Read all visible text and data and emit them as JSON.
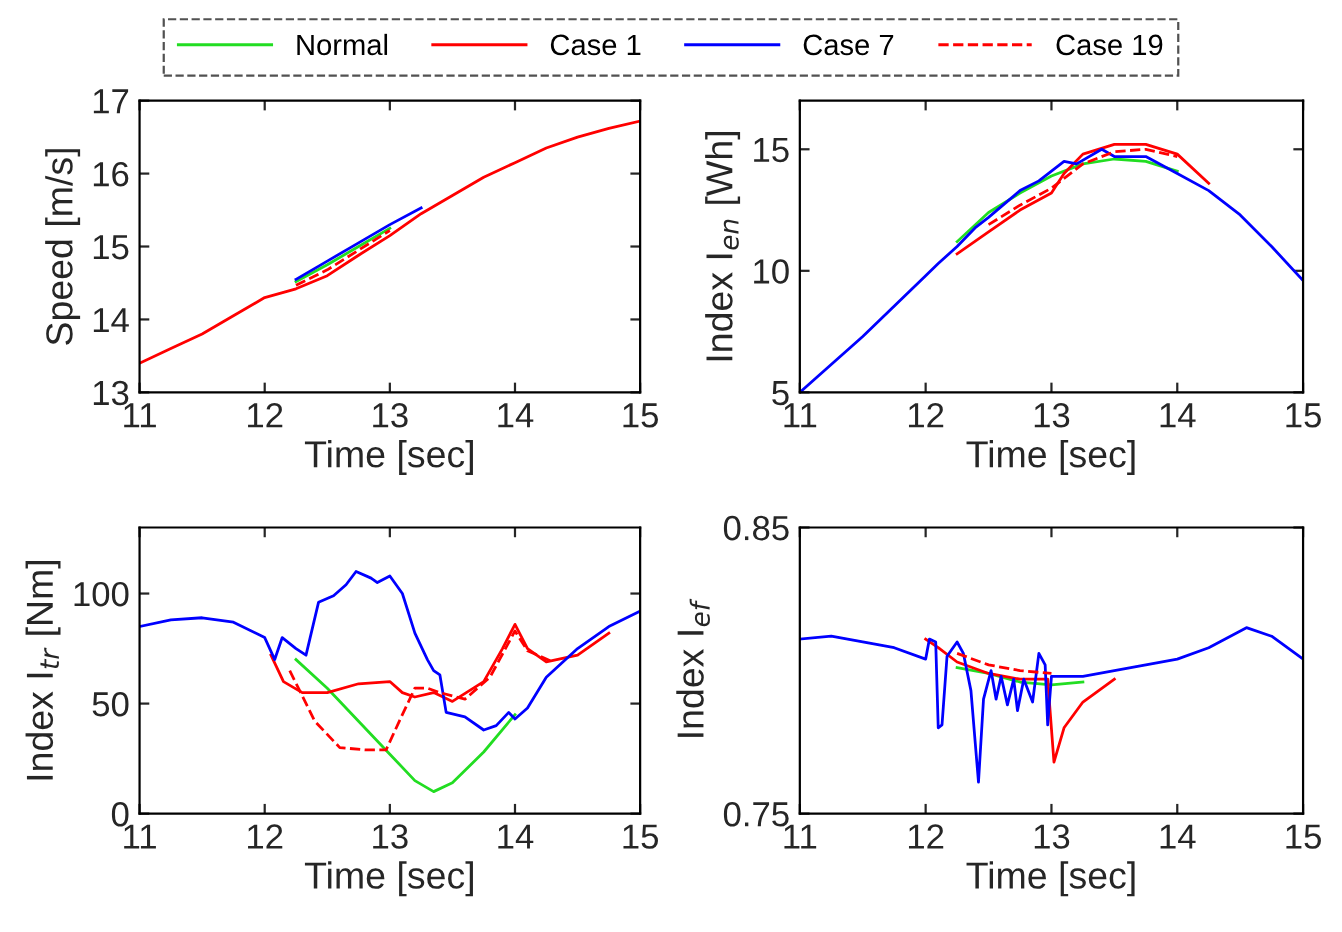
{
  "chart_data": [
    {
      "type": "line",
      "xlabel": "Time [sec]",
      "ylabel": "Speed [m/s]",
      "xlim": [
        11,
        15
      ],
      "xticks": [
        11,
        12,
        13,
        14,
        15
      ],
      "ylim": [
        13,
        17
      ],
      "yticks": [
        13,
        14,
        15,
        16,
        17
      ],
      "grid": false,
      "legend": "top",
      "marker": "none",
      "series": [
        {
          "name": "Normal",
          "color": "#22dd22",
          "line_style": "solid",
          "x": [
            12.25,
            12.5,
            12.75,
            13
          ],
          "values": [
            14.52,
            14.75,
            15.0,
            15.25
          ]
        },
        {
          "name": "Case 1",
          "color": "#ff0000",
          "line_style": "solid",
          "x": [
            11,
            11.25,
            11.5,
            11.75,
            12,
            12.25,
            12.5,
            12.75,
            13,
            13.25,
            13.5,
            13.75,
            14,
            14.25,
            14.5,
            14.75,
            15
          ],
          "values": [
            13.4,
            13.6,
            13.8,
            14.05,
            14.3,
            14.42,
            14.6,
            14.88,
            15.15,
            15.45,
            15.7,
            15.95,
            16.15,
            16.35,
            16.5,
            16.62,
            16.72
          ]
        },
        {
          "name": "Case 7",
          "color": "#0000ff",
          "line_style": "solid",
          "x": [
            12.25,
            12.5,
            12.75,
            13,
            13.25
          ],
          "values": [
            14.55,
            14.8,
            15.05,
            15.3,
            15.53
          ]
        },
        {
          "name": "Case 19",
          "color": "#ff0000",
          "line_style": "dashed",
          "x": [
            12.25,
            12.5,
            12.75,
            13
          ],
          "values": [
            14.47,
            14.68,
            14.95,
            15.22
          ]
        }
      ]
    },
    {
      "type": "line",
      "xlabel": "Time [sec]",
      "ylabel": "Index I$_{en}$ [Wh]",
      "xlim": [
        11,
        15
      ],
      "xticks": [
        11,
        12,
        13,
        14,
        15
      ],
      "ylim": [
        5,
        17
      ],
      "yticks": [
        5,
        10,
        15
      ],
      "grid": false,
      "marker": "none",
      "series": [
        {
          "color": "#22dd22",
          "line_style": "solid",
          "x": [
            12.25,
            12.5,
            12.75,
            13,
            13.25,
            13.5,
            13.75,
            14
          ],
          "values": [
            11.2,
            12.4,
            13.2,
            13.9,
            14.4,
            14.6,
            14.5,
            14.1
          ]
        },
        {
          "color": "#ff0000",
          "line_style": "solid",
          "x": [
            12.25,
            12.5,
            12.75,
            13,
            13.1,
            13.25,
            13.5,
            13.75,
            14,
            14.25
          ],
          "values": [
            10.7,
            11.6,
            12.5,
            13.2,
            14.0,
            14.8,
            15.2,
            15.2,
            14.8,
            13.6
          ]
        },
        {
          "color": "#0000ff",
          "line_style": "solid",
          "x": [
            11,
            11.5,
            12,
            12.1,
            12.25,
            12.4,
            12.5,
            12.75,
            12.9,
            13.1,
            13.2,
            13.4,
            13.5,
            13.75,
            14,
            14.25,
            14.5,
            14.75,
            15
          ],
          "values": [
            5.0,
            7.3,
            9.8,
            10.3,
            11.0,
            11.8,
            12.2,
            13.3,
            13.7,
            14.5,
            14.4,
            15.0,
            14.7,
            14.7,
            14.0,
            13.3,
            12.3,
            11.0,
            9.6
          ]
        },
        {
          "color": "#ff0000",
          "line_style": "dashed",
          "x": [
            12.5,
            12.75,
            13,
            13.25,
            13.5,
            13.75,
            14
          ],
          "values": [
            11.9,
            12.7,
            13.4,
            14.4,
            14.9,
            15.0,
            14.7
          ]
        }
      ]
    },
    {
      "type": "line",
      "xlabel": "Time [sec]",
      "ylabel": "Index I$_{tr}$ [Nm]",
      "xlim": [
        11,
        15
      ],
      "xticks": [
        11,
        12,
        13,
        14,
        15
      ],
      "ylim": [
        0,
        130
      ],
      "yticks": [
        0,
        50,
        100
      ],
      "grid": false,
      "marker": "none",
      "series": [
        {
          "color": "#22dd22",
          "line_style": "solid",
          "x": [
            12.25,
            12.5,
            12.75,
            13,
            13.2,
            13.35,
            13.5,
            13.75,
            14
          ],
          "values": [
            70,
            57,
            42,
            27,
            15,
            10,
            14,
            28,
            45
          ]
        },
        {
          "color": "#ff0000",
          "line_style": "solid",
          "x": [
            12.05,
            12.15,
            12.3,
            12.5,
            12.75,
            13,
            13.1,
            13.2,
            13.35,
            13.5,
            13.75,
            13.9,
            14,
            14.1,
            14.25,
            14.5,
            14.75
          ],
          "values": [
            72,
            60,
            55,
            55,
            59,
            60,
            55,
            53,
            55,
            51,
            60,
            75,
            86,
            75,
            69,
            72,
            82
          ]
        },
        {
          "color": "#0000ff",
          "line_style": "solid",
          "x": [
            11,
            11.25,
            11.5,
            11.75,
            12,
            12.08,
            12.14,
            12.25,
            12.33,
            12.43,
            12.55,
            12.65,
            12.73,
            12.85,
            12.9,
            13.0,
            13.1,
            13.2,
            13.3,
            13.35,
            13.4,
            13.45,
            13.6,
            13.75,
            13.85,
            13.95,
            14.0,
            14.1,
            14.25,
            14.5,
            14.75,
            15
          ],
          "values": [
            85,
            88,
            89,
            87,
            80,
            70,
            80,
            75,
            72,
            96,
            99,
            104,
            110,
            107,
            105,
            108,
            100,
            82,
            70,
            65,
            63,
            46,
            44,
            38,
            40,
            46,
            43,
            48,
            62,
            75,
            85,
            92
          ]
        },
        {
          "color": "#ff0000",
          "line_style": "dashed",
          "x": [
            12.2,
            12.4,
            12.6,
            12.8,
            12.97,
            13.1,
            13.2,
            13.3,
            13.4,
            13.6,
            13.8,
            14,
            14.1,
            14.3
          ],
          "values": [
            65,
            42,
            30,
            29,
            29,
            45,
            57,
            57,
            55,
            52,
            62,
            83,
            74,
            69
          ]
        }
      ]
    },
    {
      "type": "line",
      "xlabel": "Time [sec]",
      "ylabel": "Index I$_{ef}$",
      "xlim": [
        11,
        15
      ],
      "xticks": [
        11,
        12,
        13,
        14,
        15
      ],
      "ylim": [
        0.75,
        0.85
      ],
      "yticks": [
        0.75,
        0.85
      ],
      "grid": false,
      "marker": "none",
      "series": [
        {
          "color": "#22dd22",
          "line_style": "solid",
          "x": [
            12.25,
            12.5,
            12.75,
            13,
            13.25
          ],
          "values": [
            0.801,
            0.799,
            0.796,
            0.795,
            0.796
          ]
        },
        {
          "color": "#ff0000",
          "line_style": "solid",
          "x": [
            12,
            12.1,
            12.25,
            12.5,
            12.75,
            12.97,
            13.02,
            13.1,
            13.25,
            13.5
          ],
          "values": [
            0.811,
            0.808,
            0.803,
            0.799,
            0.797,
            0.797,
            0.768,
            0.78,
            0.789,
            0.797
          ]
        },
        {
          "color": "#0000ff",
          "line_style": "solid",
          "x": [
            11,
            11.25,
            11.5,
            11.75,
            12,
            12.03,
            12.08,
            12.1,
            12.13,
            12.17,
            12.25,
            12.3,
            12.36,
            12.42,
            12.46,
            12.52,
            12.56,
            12.6,
            12.65,
            12.7,
            12.73,
            12.78,
            12.85,
            12.9,
            12.95,
            12.97,
            13.0,
            13.25,
            13.5,
            13.75,
            14,
            14.25,
            14.55,
            14.75,
            15
          ],
          "values": [
            0.811,
            0.812,
            0.81,
            0.808,
            0.804,
            0.811,
            0.81,
            0.78,
            0.781,
            0.805,
            0.81,
            0.806,
            0.793,
            0.761,
            0.79,
            0.8,
            0.79,
            0.798,
            0.788,
            0.797,
            0.786,
            0.797,
            0.789,
            0.806,
            0.802,
            0.781,
            0.798,
            0.798,
            0.8,
            0.802,
            0.804,
            0.808,
            0.815,
            0.812,
            0.804
          ]
        },
        {
          "color": "#ff0000",
          "line_style": "dashed",
          "x": [
            12.25,
            12.5,
            12.75,
            13
          ],
          "values": [
            0.806,
            0.802,
            0.8,
            0.799
          ]
        }
      ]
    }
  ]
}
